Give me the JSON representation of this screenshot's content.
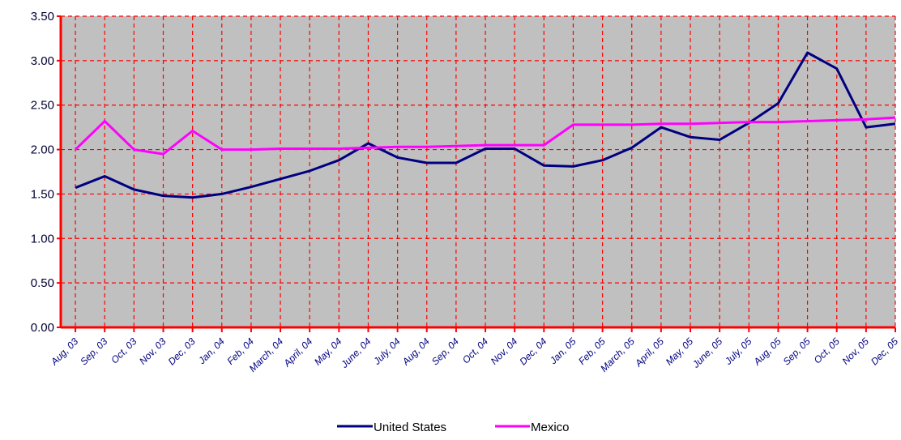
{
  "chart_data": {
    "type": "line",
    "title": "",
    "xlabel": "",
    "ylabel": "",
    "ylim": [
      0,
      3.5
    ],
    "y_ticks": [
      "0.00",
      "0.50",
      "1.00",
      "1.50",
      "2.00",
      "2.50",
      "3.00",
      "3.50"
    ],
    "grid": true,
    "legend_position": "bottom",
    "categories": [
      "Aug, 03",
      "Sep, 03",
      "Oct, 03",
      "Nov, 03",
      "Dec, 03",
      "Jan, 04",
      "Feb, 04",
      "March, 04",
      "April, 04",
      "May, 04",
      "June, 04",
      "July, 04",
      "Aug, 04",
      "Sep, 04",
      "Oct, 04",
      "Nov, 04",
      "Dec, 04",
      "Jan, 05",
      "Feb, 05",
      "March, 05",
      "April, 05",
      "May, 05",
      "June, 05",
      "July, 05",
      "Aug, 05",
      "Sep, 05",
      "Oct, 05",
      "Nov, 05",
      "Dec, 05"
    ],
    "series": [
      {
        "name": "United States",
        "color": "#000080",
        "values": [
          1.57,
          1.7,
          1.55,
          1.48,
          1.46,
          1.5,
          1.58,
          1.67,
          1.76,
          1.88,
          2.07,
          1.91,
          1.85,
          1.85,
          2.01,
          2.01,
          1.82,
          1.81,
          1.88,
          2.02,
          2.25,
          2.14,
          2.11,
          2.3,
          2.52,
          3.09,
          2.91,
          2.25,
          2.29
        ]
      },
      {
        "name": "Mexico",
        "color": "#ff00ff",
        "values": [
          2.0,
          2.32,
          2.0,
          1.95,
          2.21,
          2.0,
          2.0,
          2.01,
          2.01,
          2.01,
          2.02,
          2.03,
          2.03,
          2.04,
          2.05,
          2.05,
          2.05,
          2.28,
          2.28,
          2.28,
          2.29,
          2.29,
          2.3,
          2.31,
          2.31,
          2.32,
          2.33,
          2.34,
          2.36
        ]
      }
    ],
    "colors": {
      "plot_background": "#c0c0c0",
      "grid": "#ff0000",
      "axis": "#ff0000"
    }
  }
}
